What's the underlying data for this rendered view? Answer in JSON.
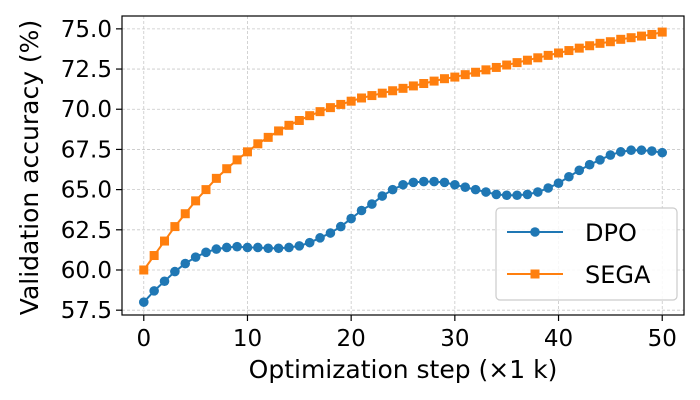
{
  "chart_data": {
    "type": "line",
    "title": "",
    "xlabel": "Optimization step (×1 k)",
    "ylabel": "Validation accuracy (%)",
    "xlim": [
      -2.1,
      52.1
    ],
    "ylim": [
      57.2,
      75.8
    ],
    "grid": true,
    "legend_position": "lower-right",
    "x_ticks": [
      0,
      10,
      20,
      30,
      40,
      50
    ],
    "x_tick_labels": [
      "0",
      "10",
      "20",
      "30",
      "40",
      "50"
    ],
    "y_ticks": [
      57.5,
      60.0,
      62.5,
      65.0,
      67.5,
      70.0,
      72.5,
      75.0
    ],
    "y_tick_labels": [
      "57.5",
      "60.0",
      "62.5",
      "65.0",
      "67.5",
      "70.0",
      "72.5",
      "75.0"
    ],
    "x": [
      0,
      1,
      2,
      3,
      4,
      5,
      6,
      7,
      8,
      9,
      10,
      11,
      12,
      13,
      14,
      15,
      16,
      17,
      18,
      19,
      20,
      21,
      22,
      23,
      24,
      25,
      26,
      27,
      28,
      29,
      30,
      31,
      32,
      33,
      34,
      35,
      36,
      37,
      38,
      39,
      40,
      41,
      42,
      43,
      44,
      45,
      46,
      47,
      48,
      49,
      50
    ],
    "series": [
      {
        "name": "DPO",
        "color": "#1f77b4",
        "marker": "circle",
        "values": [
          58.0,
          58.7,
          59.3,
          59.9,
          60.4,
          60.8,
          61.1,
          61.3,
          61.4,
          61.45,
          61.4,
          61.4,
          61.35,
          61.35,
          61.4,
          61.5,
          61.7,
          62.0,
          62.3,
          62.7,
          63.2,
          63.7,
          64.1,
          64.6,
          65.0,
          65.3,
          65.45,
          65.5,
          65.5,
          65.45,
          65.3,
          65.15,
          65.0,
          64.85,
          64.7,
          64.65,
          64.65,
          64.7,
          64.85,
          65.1,
          65.4,
          65.8,
          66.2,
          66.55,
          66.85,
          67.15,
          67.35,
          67.45,
          67.45,
          67.4,
          67.3
        ]
      },
      {
        "name": "SEGA",
        "color": "#ff7f0e",
        "marker": "square",
        "values": [
          60.0,
          60.9,
          61.8,
          62.7,
          63.5,
          64.3,
          65.0,
          65.7,
          66.3,
          66.85,
          67.35,
          67.85,
          68.25,
          68.65,
          69.0,
          69.3,
          69.6,
          69.85,
          70.1,
          70.3,
          70.5,
          70.7,
          70.85,
          71.0,
          71.15,
          71.3,
          71.45,
          71.6,
          71.75,
          71.9,
          72.0,
          72.15,
          72.3,
          72.45,
          72.6,
          72.75,
          72.9,
          73.05,
          73.2,
          73.35,
          73.5,
          73.65,
          73.8,
          73.95,
          74.1,
          74.2,
          74.35,
          74.45,
          74.55,
          74.65,
          74.8
        ]
      }
    ]
  }
}
